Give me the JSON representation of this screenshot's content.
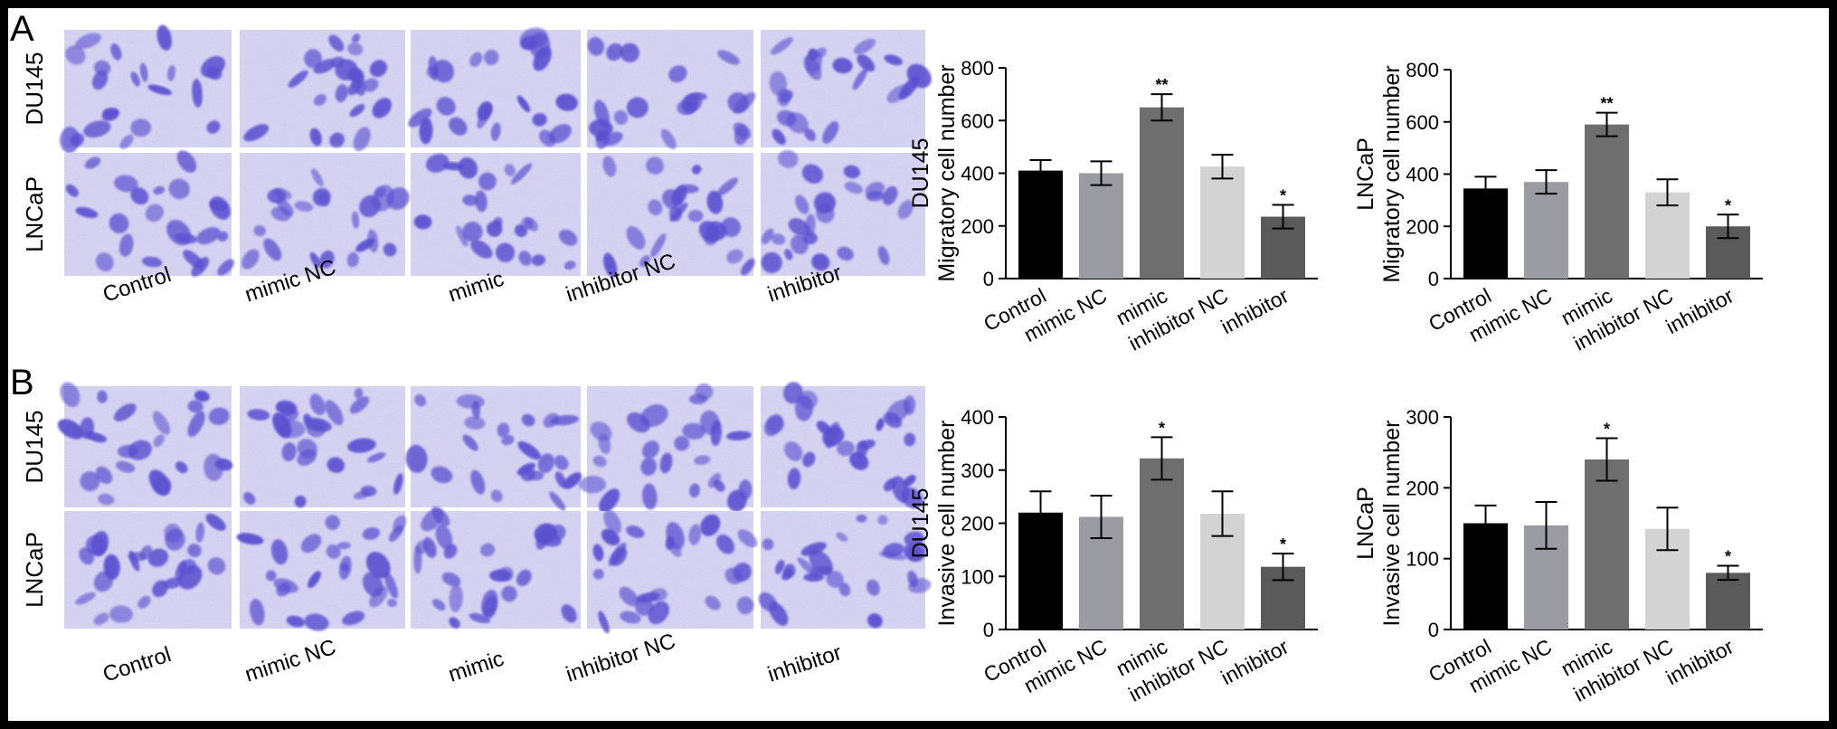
{
  "panels": {
    "A": {
      "letter": "A",
      "micrograph_rows": [
        "DU145",
        "LNCaP"
      ],
      "micrograph_columns": [
        "Control",
        "mimic NC",
        "mimic",
        "inhibitor NC",
        "inhibitor"
      ]
    },
    "B": {
      "letter": "B",
      "micrograph_rows": [
        "DU145",
        "LNCaP"
      ],
      "micrograph_columns": [
        "Control",
        "mimic NC",
        "mimic",
        "inhibitor NC",
        "inhibitor"
      ]
    }
  },
  "colors": {
    "stain": "#5a4fd0",
    "field": "#d8d6f2",
    "bars": [
      "#000000",
      "#9b9ba3",
      "#6e6e6e",
      "#d3d3d3",
      "#5a5a5a"
    ]
  },
  "chart_data": [
    {
      "type": "bar",
      "panel": "A",
      "categories": [
        "Control",
        "mimic NC",
        "mimic",
        "inhibitor NC",
        "inhibitor"
      ],
      "values": [
        410,
        400,
        650,
        425,
        235
      ],
      "errors": [
        40,
        45,
        50,
        45,
        45
      ],
      "significance": [
        "",
        "",
        "**",
        "",
        "*"
      ],
      "ylabel": "DU145\nMigratory cell number",
      "ylim": [
        0,
        800
      ],
      "yticks": [
        0,
        200,
        400,
        600,
        800
      ]
    },
    {
      "type": "bar",
      "panel": "A",
      "categories": [
        "Control",
        "mimic NC",
        "mimic",
        "inhibitor NC",
        "inhibitor"
      ],
      "values": [
        345,
        370,
        590,
        330,
        200
      ],
      "errors": [
        45,
        45,
        45,
        50,
        45
      ],
      "significance": [
        "",
        "",
        "**",
        "",
        "*"
      ],
      "ylabel": "LNCaP\nMigratory cell number",
      "ylim": [
        0,
        800
      ],
      "yticks": [
        0,
        200,
        400,
        600,
        800
      ]
    },
    {
      "type": "bar",
      "panel": "B",
      "categories": [
        "Control",
        "mimic NC",
        "mimic",
        "inhibitor NC",
        "inhibitor"
      ],
      "values": [
        220,
        212,
        322,
        218,
        118
      ],
      "errors": [
        40,
        40,
        40,
        42,
        25
      ],
      "significance": [
        "",
        "",
        "*",
        "",
        "*"
      ],
      "ylabel": "DU145\nInvasive cell number",
      "ylim": [
        0,
        400
      ],
      "yticks": [
        0,
        100,
        200,
        300,
        400
      ]
    },
    {
      "type": "bar",
      "panel": "B",
      "categories": [
        "Control",
        "mimic NC",
        "mimic",
        "inhibitor NC",
        "inhibitor"
      ],
      "values": [
        150,
        147,
        240,
        142,
        80
      ],
      "errors": [
        25,
        33,
        30,
        30,
        10
      ],
      "significance": [
        "",
        "",
        "*",
        "",
        "*"
      ],
      "ylabel": "LNCaP\nInvasive cell number",
      "ylim": [
        0,
        300
      ],
      "yticks": [
        0,
        100,
        200,
        300
      ]
    }
  ]
}
